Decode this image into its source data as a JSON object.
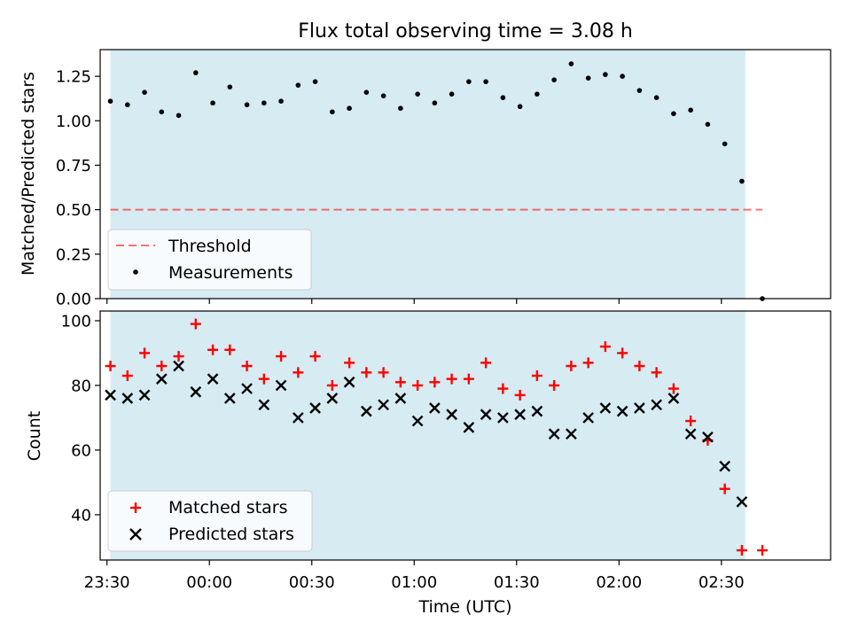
{
  "figure": {
    "title": "Flux total observing time = 3.08 h",
    "xlabel": "Time (UTC)"
  },
  "colors": {
    "shade": "#add8e6",
    "threshold": "#ff0000",
    "matched": "#ff0000",
    "predicted": "#000000",
    "measurements": "#000000"
  },
  "chart_data": [
    {
      "type": "scatter",
      "ylabel": "Matched/Predicted stars",
      "ylim": [
        0,
        1.4
      ],
      "yticks": [
        "0.00",
        "0.25",
        "0.50",
        "0.75",
        "1.00",
        "1.25"
      ],
      "xlim": [
        "23:28",
        "03:02"
      ],
      "shaded_interval": [
        "23:31",
        "02:37"
      ],
      "threshold": {
        "name": "Threshold",
        "y": 0.5,
        "x_range": [
          "23:31",
          "02:42"
        ]
      },
      "series": [
        {
          "name": "Measurements",
          "x": [
            "23:31",
            "23:36",
            "23:41",
            "23:46",
            "23:51",
            "23:56",
            "00:01",
            "00:06",
            "00:11",
            "00:16",
            "00:21",
            "00:26",
            "00:31",
            "00:36",
            "00:41",
            "00:46",
            "00:51",
            "00:56",
            "01:01",
            "01:06",
            "01:11",
            "01:16",
            "01:21",
            "01:26",
            "01:31",
            "01:36",
            "01:41",
            "01:46",
            "01:51",
            "01:56",
            "02:01",
            "02:06",
            "02:11",
            "02:16",
            "02:21",
            "02:26",
            "02:31",
            "02:36",
            "02:42"
          ],
          "y": [
            1.11,
            1.09,
            1.16,
            1.05,
            1.03,
            1.27,
            1.1,
            1.19,
            1.09,
            1.1,
            1.11,
            1.2,
            1.22,
            1.05,
            1.07,
            1.16,
            1.14,
            1.07,
            1.15,
            1.1,
            1.15,
            1.22,
            1.22,
            1.13,
            1.08,
            1.15,
            1.23,
            1.32,
            1.24,
            1.26,
            1.25,
            1.17,
            1.13,
            1.04,
            1.06,
            0.98,
            0.87,
            0.66,
            0.0
          ]
        }
      ],
      "legend": {
        "position": "lower-left",
        "entries": [
          "Threshold",
          "Measurements"
        ]
      }
    },
    {
      "type": "scatter",
      "ylabel": "Count",
      "ylim": [
        26,
        103
      ],
      "yticks": [
        "40",
        "60",
        "80",
        "100"
      ],
      "xlim": [
        "23:28",
        "03:02"
      ],
      "shaded_interval": [
        "23:31",
        "02:37"
      ],
      "xticks": [
        "23:30",
        "00:00",
        "00:30",
        "01:00",
        "01:30",
        "02:00",
        "02:30"
      ],
      "series": [
        {
          "name": "Matched stars",
          "marker": "+",
          "x": [
            "23:31",
            "23:36",
            "23:41",
            "23:46",
            "23:51",
            "23:56",
            "00:01",
            "00:06",
            "00:11",
            "00:16",
            "00:21",
            "00:26",
            "00:31",
            "00:36",
            "00:41",
            "00:46",
            "00:51",
            "00:56",
            "01:01",
            "01:06",
            "01:11",
            "01:16",
            "01:21",
            "01:26",
            "01:31",
            "01:36",
            "01:41",
            "01:46",
            "01:51",
            "01:56",
            "02:01",
            "02:06",
            "02:11",
            "02:16",
            "02:21",
            "02:26",
            "02:31",
            "02:36",
            "02:42"
          ],
          "y": [
            86,
            83,
            90,
            86,
            89,
            99,
            91,
            91,
            86,
            82,
            89,
            84,
            89,
            80,
            87,
            84,
            84,
            81,
            80,
            81,
            82,
            82,
            87,
            79,
            77,
            83,
            80,
            86,
            87,
            92,
            90,
            86,
            84,
            79,
            69,
            63,
            48,
            29,
            29
          ]
        },
        {
          "name": "Predicted stars",
          "marker": "x",
          "x": [
            "23:31",
            "23:36",
            "23:41",
            "23:46",
            "23:51",
            "23:56",
            "00:01",
            "00:06",
            "00:11",
            "00:16",
            "00:21",
            "00:26",
            "00:31",
            "00:36",
            "00:41",
            "00:46",
            "00:51",
            "00:56",
            "01:01",
            "01:06",
            "01:11",
            "01:16",
            "01:21",
            "01:26",
            "01:31",
            "01:36",
            "01:41",
            "01:46",
            "01:51",
            "01:56",
            "02:01",
            "02:06",
            "02:11",
            "02:16",
            "02:21",
            "02:26",
            "02:31",
            "02:36"
          ],
          "y": [
            77,
            76,
            77,
            82,
            86,
            78,
            82,
            76,
            79,
            74,
            80,
            70,
            73,
            76,
            81,
            72,
            74,
            76,
            69,
            73,
            71,
            67,
            71,
            70,
            71,
            72,
            65,
            65,
            70,
            73,
            72,
            73,
            74,
            76,
            65,
            64,
            55,
            44
          ]
        }
      ],
      "legend": {
        "position": "lower-left",
        "entries": [
          "Matched stars",
          "Predicted stars"
        ]
      }
    }
  ]
}
